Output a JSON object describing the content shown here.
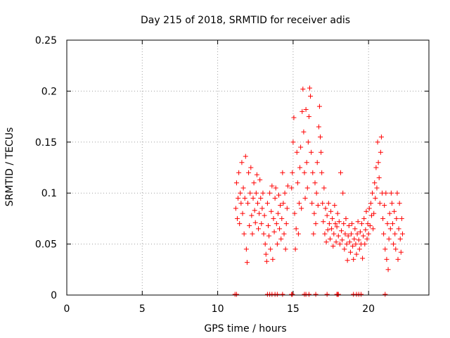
{
  "chart_data": {
    "type": "scatter",
    "title": "Day 215 of 2018, SRMTID for receiver adis",
    "xlabel": "GPS time / hours",
    "ylabel": "SRMTID / TECUs",
    "xlim": [
      0,
      24
    ],
    "ylim": [
      0,
      0.25
    ],
    "xticks": [
      0,
      5,
      10,
      15,
      20
    ],
    "yticks": [
      0,
      0.05,
      0.1,
      0.15,
      0.2,
      0.25
    ],
    "ytick_labels": [
      "0",
      "0.05",
      "0.1",
      "0.15",
      "0.2",
      "0.25"
    ],
    "grid": true,
    "legend": "none",
    "marker": "plus",
    "marker_color": "#ff0000",
    "series": [
      {
        "points": [
          [
            11.2,
            0.085
          ],
          [
            11.25,
            0.11
          ],
          [
            11.3,
            0.075
          ],
          [
            11.35,
            0.095
          ],
          [
            11.4,
            0.12
          ],
          [
            11.45,
            0.07
          ],
          [
            11.5,
            0.1
          ],
          [
            11.55,
            0.09
          ],
          [
            11.6,
            0.13
          ],
          [
            11.65,
            0.08
          ],
          [
            11.7,
            0.105
          ],
          [
            11.75,
            0.06
          ],
          [
            11.8,
            0.095
          ],
          [
            11.85,
            0.136
          ],
          [
            11.9,
            0.045
          ],
          [
            11.95,
            0.032
          ],
          [
            12.0,
            0.09
          ],
          [
            12.05,
            0.12
          ],
          [
            12.1,
            0.068
          ],
          [
            12.15,
            0.1
          ],
          [
            12.2,
            0.125
          ],
          [
            12.25,
            0.078
          ],
          [
            12.3,
            0.06
          ],
          [
            12.35,
            0.095
          ],
          [
            12.4,
            0.11
          ],
          [
            12.45,
            0.083
          ],
          [
            12.5,
            0.071
          ],
          [
            12.55,
            0.1
          ],
          [
            12.6,
            0.118
          ],
          [
            12.65,
            0.09
          ],
          [
            12.7,
            0.065
          ],
          [
            12.75,
            0.08
          ],
          [
            12.8,
            0.113
          ],
          [
            12.85,
            0.095
          ],
          [
            12.9,
            0.07
          ],
          [
            12.95,
            0.085
          ],
          [
            13.0,
            0.1
          ],
          [
            13.05,
            0.06
          ],
          [
            13.1,
            0.078
          ],
          [
            13.15,
            0.05
          ],
          [
            13.2,
            0.04
          ],
          [
            13.25,
            0.033
          ],
          [
            13.3,
            0.09
          ],
          [
            13.35,
            0.068
          ],
          [
            13.4,
            0.058
          ],
          [
            13.45,
            0.1
          ],
          [
            13.5,
            0.045
          ],
          [
            13.55,
            0.082
          ],
          [
            13.6,
            0.107
          ],
          [
            13.65,
            0.035
          ],
          [
            13.7,
            0.075
          ],
          [
            13.75,
            0.062
          ],
          [
            13.8,
            0.095
          ],
          [
            13.85,
            0.105
          ],
          [
            13.9,
            0.07
          ],
          [
            13.95,
            0.05
          ],
          [
            14.0,
            0.08
          ],
          [
            14.05,
            0.098
          ],
          [
            14.1,
            0.065
          ],
          [
            14.15,
            0.088
          ],
          [
            14.2,
            0.055
          ],
          [
            14.25,
            0.075
          ],
          [
            14.3,
            0.12
          ],
          [
            14.35,
            0.09
          ],
          [
            14.4,
            0.06
          ],
          [
            14.45,
            0.1
          ],
          [
            14.5,
            0.045
          ],
          [
            14.55,
            0.07
          ],
          [
            14.6,
            0.085
          ],
          [
            14.65,
            0.107
          ],
          [
            14.9,
            0.105
          ],
          [
            14.95,
            0.12
          ],
          [
            15.0,
            0.15
          ],
          [
            15.05,
            0.174
          ],
          [
            15.1,
            0.08
          ],
          [
            15.15,
            0.045
          ],
          [
            15.2,
            0.065
          ],
          [
            15.25,
            0.14
          ],
          [
            15.3,
            0.11
          ],
          [
            15.35,
            0.06
          ],
          [
            15.4,
            0.09
          ],
          [
            15.45,
            0.125
          ],
          [
            15.5,
            0.145
          ],
          [
            15.55,
            0.085
          ],
          [
            15.6,
            0.18
          ],
          [
            15.65,
            0.202
          ],
          [
            15.7,
            0.16
          ],
          [
            15.75,
            0.12
          ],
          [
            15.8,
            0.095
          ],
          [
            15.85,
            0.182
          ],
          [
            15.9,
            0.13
          ],
          [
            15.95,
            0.105
          ],
          [
            16.0,
            0.15
          ],
          [
            16.05,
            0.175
          ],
          [
            16.1,
            0.203
          ],
          [
            16.15,
            0.195
          ],
          [
            16.2,
            0.14
          ],
          [
            16.25,
            0.09
          ],
          [
            16.3,
            0.12
          ],
          [
            16.35,
            0.06
          ],
          [
            16.4,
            0.08
          ],
          [
            16.45,
            0.11
          ],
          [
            16.5,
            0.07
          ],
          [
            16.55,
            0.1
          ],
          [
            16.6,
            0.13
          ],
          [
            16.65,
            0.088
          ],
          [
            16.7,
            0.165
          ],
          [
            16.75,
            0.185
          ],
          [
            16.8,
            0.155
          ],
          [
            16.85,
            0.14
          ],
          [
            16.9,
            0.12
          ],
          [
            16.95,
            0.09
          ],
          [
            17.0,
            0.072
          ],
          [
            17.05,
            0.105
          ],
          [
            17.1,
            0.06
          ],
          [
            17.15,
            0.085
          ],
          [
            17.2,
            0.052
          ],
          [
            17.25,
            0.078
          ],
          [
            17.3,
            0.064
          ],
          [
            17.35,
            0.09
          ],
          [
            17.4,
            0.07
          ],
          [
            17.45,
            0.055
          ],
          [
            17.5,
            0.082
          ],
          [
            17.55,
            0.065
          ],
          [
            17.6,
            0.075
          ],
          [
            17.65,
            0.048
          ],
          [
            17.7,
            0.06
          ],
          [
            17.75,
            0.088
          ],
          [
            17.8,
            0.07
          ],
          [
            17.85,
            0.052
          ],
          [
            17.9,
            0.067
          ],
          [
            17.95,
            0.08
          ],
          [
            18.0,
            0.058
          ],
          [
            18.05,
            0.072
          ],
          [
            18.1,
            0.05
          ],
          [
            18.15,
            0.12
          ],
          [
            18.2,
            0.063
          ],
          [
            18.25,
            0.054
          ],
          [
            18.3,
            0.1
          ],
          [
            18.35,
            0.07
          ],
          [
            18.4,
            0.045
          ],
          [
            18.45,
            0.06
          ],
          [
            18.5,
            0.075
          ],
          [
            18.55,
            0.05
          ],
          [
            18.6,
            0.034
          ],
          [
            18.65,
            0.058
          ],
          [
            18.7,
            0.068
          ],
          [
            18.75,
            0.052
          ],
          [
            18.8,
            0.042
          ],
          [
            18.85,
            0.06
          ],
          [
            18.9,
            0.07
          ],
          [
            18.95,
            0.048
          ],
          [
            19.0,
            0.035
          ],
          [
            19.05,
            0.055
          ],
          [
            19.1,
            0.065
          ],
          [
            19.15,
            0.05
          ],
          [
            19.2,
            0.04
          ],
          [
            19.25,
            0.06
          ],
          [
            19.3,
            0.072
          ],
          [
            19.35,
            0.054
          ],
          [
            19.4,
            0.045
          ],
          [
            19.45,
            0.062
          ],
          [
            19.5,
            0.05
          ],
          [
            19.55,
            0.07
          ],
          [
            19.6,
            0.036
          ],
          [
            19.65,
            0.058
          ],
          [
            19.7,
            0.075
          ],
          [
            19.75,
            0.05
          ],
          [
            19.8,
            0.064
          ],
          [
            19.85,
            0.082
          ],
          [
            19.9,
            0.055
          ],
          [
            19.95,
            0.07
          ],
          [
            20.0,
            0.06
          ],
          [
            20.05,
            0.085
          ],
          [
            20.1,
            0.068
          ],
          [
            20.15,
            0.09
          ],
          [
            20.2,
            0.078
          ],
          [
            20.25,
            0.1
          ],
          [
            20.3,
            0.065
          ],
          [
            20.35,
            0.08
          ],
          [
            20.4,
            0.11
          ],
          [
            20.45,
            0.095
          ],
          [
            20.5,
            0.125
          ],
          [
            20.55,
            0.105
          ],
          [
            20.6,
            0.15
          ],
          [
            20.65,
            0.13
          ],
          [
            20.7,
            0.115
          ],
          [
            20.75,
            0.09
          ],
          [
            20.8,
            0.14
          ],
          [
            20.85,
            0.155
          ],
          [
            20.9,
            0.1
          ],
          [
            20.95,
            0.075
          ],
          [
            21.0,
            0.06
          ],
          [
            21.05,
            0.088
          ],
          [
            21.1,
            0.045
          ],
          [
            21.15,
            0.1
          ],
          [
            21.2,
            0.035
          ],
          [
            21.25,
            0.07
          ],
          [
            21.3,
            0.025
          ],
          [
            21.35,
            0.055
          ],
          [
            21.4,
            0.08
          ],
          [
            21.45,
            0.065
          ],
          [
            21.5,
            0.1
          ],
          [
            21.55,
            0.09
          ],
          [
            21.6,
            0.07
          ],
          [
            21.65,
            0.05
          ],
          [
            21.7,
            0.082
          ],
          [
            21.75,
            0.06
          ],
          [
            21.8,
            0.045
          ],
          [
            21.85,
            0.075
          ],
          [
            21.9,
            0.1
          ],
          [
            21.95,
            0.035
          ],
          [
            22.0,
            0.065
          ],
          [
            22.05,
            0.09
          ],
          [
            22.1,
            0.055
          ],
          [
            22.15,
            0.042
          ],
          [
            22.2,
            0.075
          ],
          [
            22.25,
            0.06
          ]
        ]
      },
      {
        "points": [
          [
            11.15,
            0
          ],
          [
            11.25,
            0
          ],
          [
            13.3,
            0
          ],
          [
            13.45,
            0
          ],
          [
            13.6,
            0
          ],
          [
            13.8,
            0
          ],
          [
            13.95,
            0
          ],
          [
            14.3,
            0
          ],
          [
            14.9,
            0
          ],
          [
            14.95,
            0
          ],
          [
            15.75,
            0
          ],
          [
            15.85,
            0
          ],
          [
            16.05,
            0
          ],
          [
            16.5,
            0
          ],
          [
            17.25,
            0
          ],
          [
            17.9,
            0
          ],
          [
            17.95,
            0
          ],
          [
            18.0,
            0
          ],
          [
            19.0,
            0
          ],
          [
            19.2,
            0
          ],
          [
            19.35,
            0
          ],
          [
            19.5,
            0
          ],
          [
            21.1,
            0
          ]
        ]
      }
    ]
  }
}
